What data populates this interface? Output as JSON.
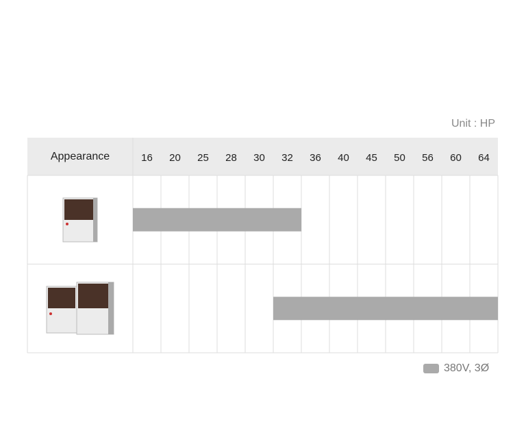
{
  "unit_label": "Unit : HP",
  "table": {
    "header": "Appearance",
    "columns": [
      16,
      20,
      25,
      28,
      30,
      32,
      36,
      40,
      45,
      50,
      56,
      60,
      64
    ],
    "rows": [
      {
        "range": [
          16,
          32
        ]
      },
      {
        "range": [
          32,
          64
        ]
      }
    ]
  },
  "legend": {
    "label": "380V, 3Ø",
    "color": "#aaaaaa"
  }
}
